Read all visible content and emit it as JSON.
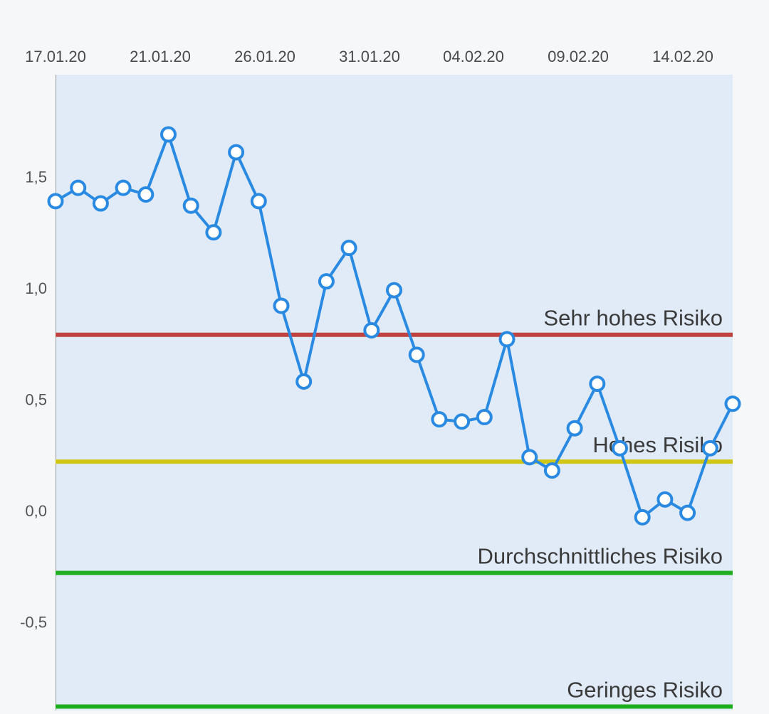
{
  "chart_data": {
    "type": "line",
    "title": "",
    "xlabel": "",
    "ylabel": "",
    "x_tick_labels": [
      "17.01.20",
      "21.01.20",
      "26.01.20",
      "31.01.20",
      "04.02.20",
      "09.02.20",
      "14.02.20"
    ],
    "y_tick_labels": [
      "1,5",
      "1,0",
      "0,5",
      "0,0",
      "-0,5"
    ],
    "y_ticks": [
      1.5,
      1.0,
      0.5,
      0.0,
      -0.5
    ],
    "ylim": [
      -0.89,
      1.95
    ],
    "x_axis_position": "top",
    "series": [
      {
        "values": [
          1.39,
          1.45,
          1.38,
          1.45,
          1.42,
          1.69,
          1.37,
          1.25,
          1.61,
          1.39,
          0.92,
          0.58,
          1.03,
          1.18,
          0.81,
          0.99,
          0.7,
          0.41,
          0.4,
          0.42,
          0.77,
          0.24,
          0.18,
          0.37,
          0.57,
          0.28,
          -0.03,
          0.05,
          -0.01,
          0.28,
          0.48
        ],
        "color": "#2a8ae2"
      }
    ],
    "thresholds": [
      {
        "label": "Sehr hohes Risiko",
        "value": 0.79,
        "color": "#c0423f"
      },
      {
        "label": "Hohes Risiko",
        "value": 0.22,
        "color": "#cfc615"
      },
      {
        "label": "Durchschnittliches Risiko",
        "value": -0.28,
        "color": "#1fae1f"
      },
      {
        "label": "Geringes Risiko",
        "value": -0.88,
        "color": "#1fae1f"
      }
    ],
    "plot_background": "#e0ebf7",
    "grid": false
  }
}
